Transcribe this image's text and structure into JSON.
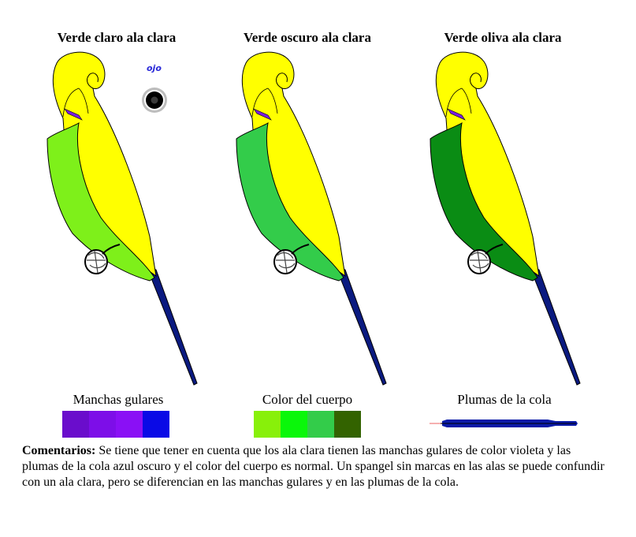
{
  "titles": [
    "Verde claro ala clara",
    "Verde oscuro ala clara",
    "Verde oliva ala clara"
  ],
  "birds": [
    {
      "body_color": "#7ef01a",
      "wing_color": "#ffff00",
      "throat_color": "#7a1ee0",
      "tail_color": "#0a1a80"
    },
    {
      "body_color": "#33cc4a",
      "wing_color": "#ffff00",
      "throat_color": "#7a1ee0",
      "tail_color": "#0a1a80"
    },
    {
      "body_color": "#0a8c14",
      "wing_color": "#ffff00",
      "throat_color": "#7a1ee0",
      "tail_color": "#0a1a80"
    }
  ],
  "eye": {
    "label": "ojo"
  },
  "legend": {
    "throat_spots": {
      "label": "Manchas gulares",
      "colors": [
        "#6a0dcc",
        "#7d0ee8",
        "#8a10f5",
        "#0a0ae6"
      ]
    },
    "body_color": {
      "label": "Color del cuerpo",
      "colors": [
        "#88f00a",
        "#0af70a",
        "#33cc4a",
        "#336300"
      ]
    },
    "tail_feathers": {
      "label": "Plumas de la cola",
      "color": "#0a1aa8"
    }
  },
  "comments": {
    "label": "Comentarios:",
    "text": " Se tiene que tener en cuenta que los ala clara tienen las manchas gulares de color violeta y las plumas de la cola azul oscuro y el color del cuerpo es normal. Un spangel sin marcas en las alas se puede confundir con un ala clara, pero se diferencian en las manchas gulares y en las plumas de la cola."
  }
}
